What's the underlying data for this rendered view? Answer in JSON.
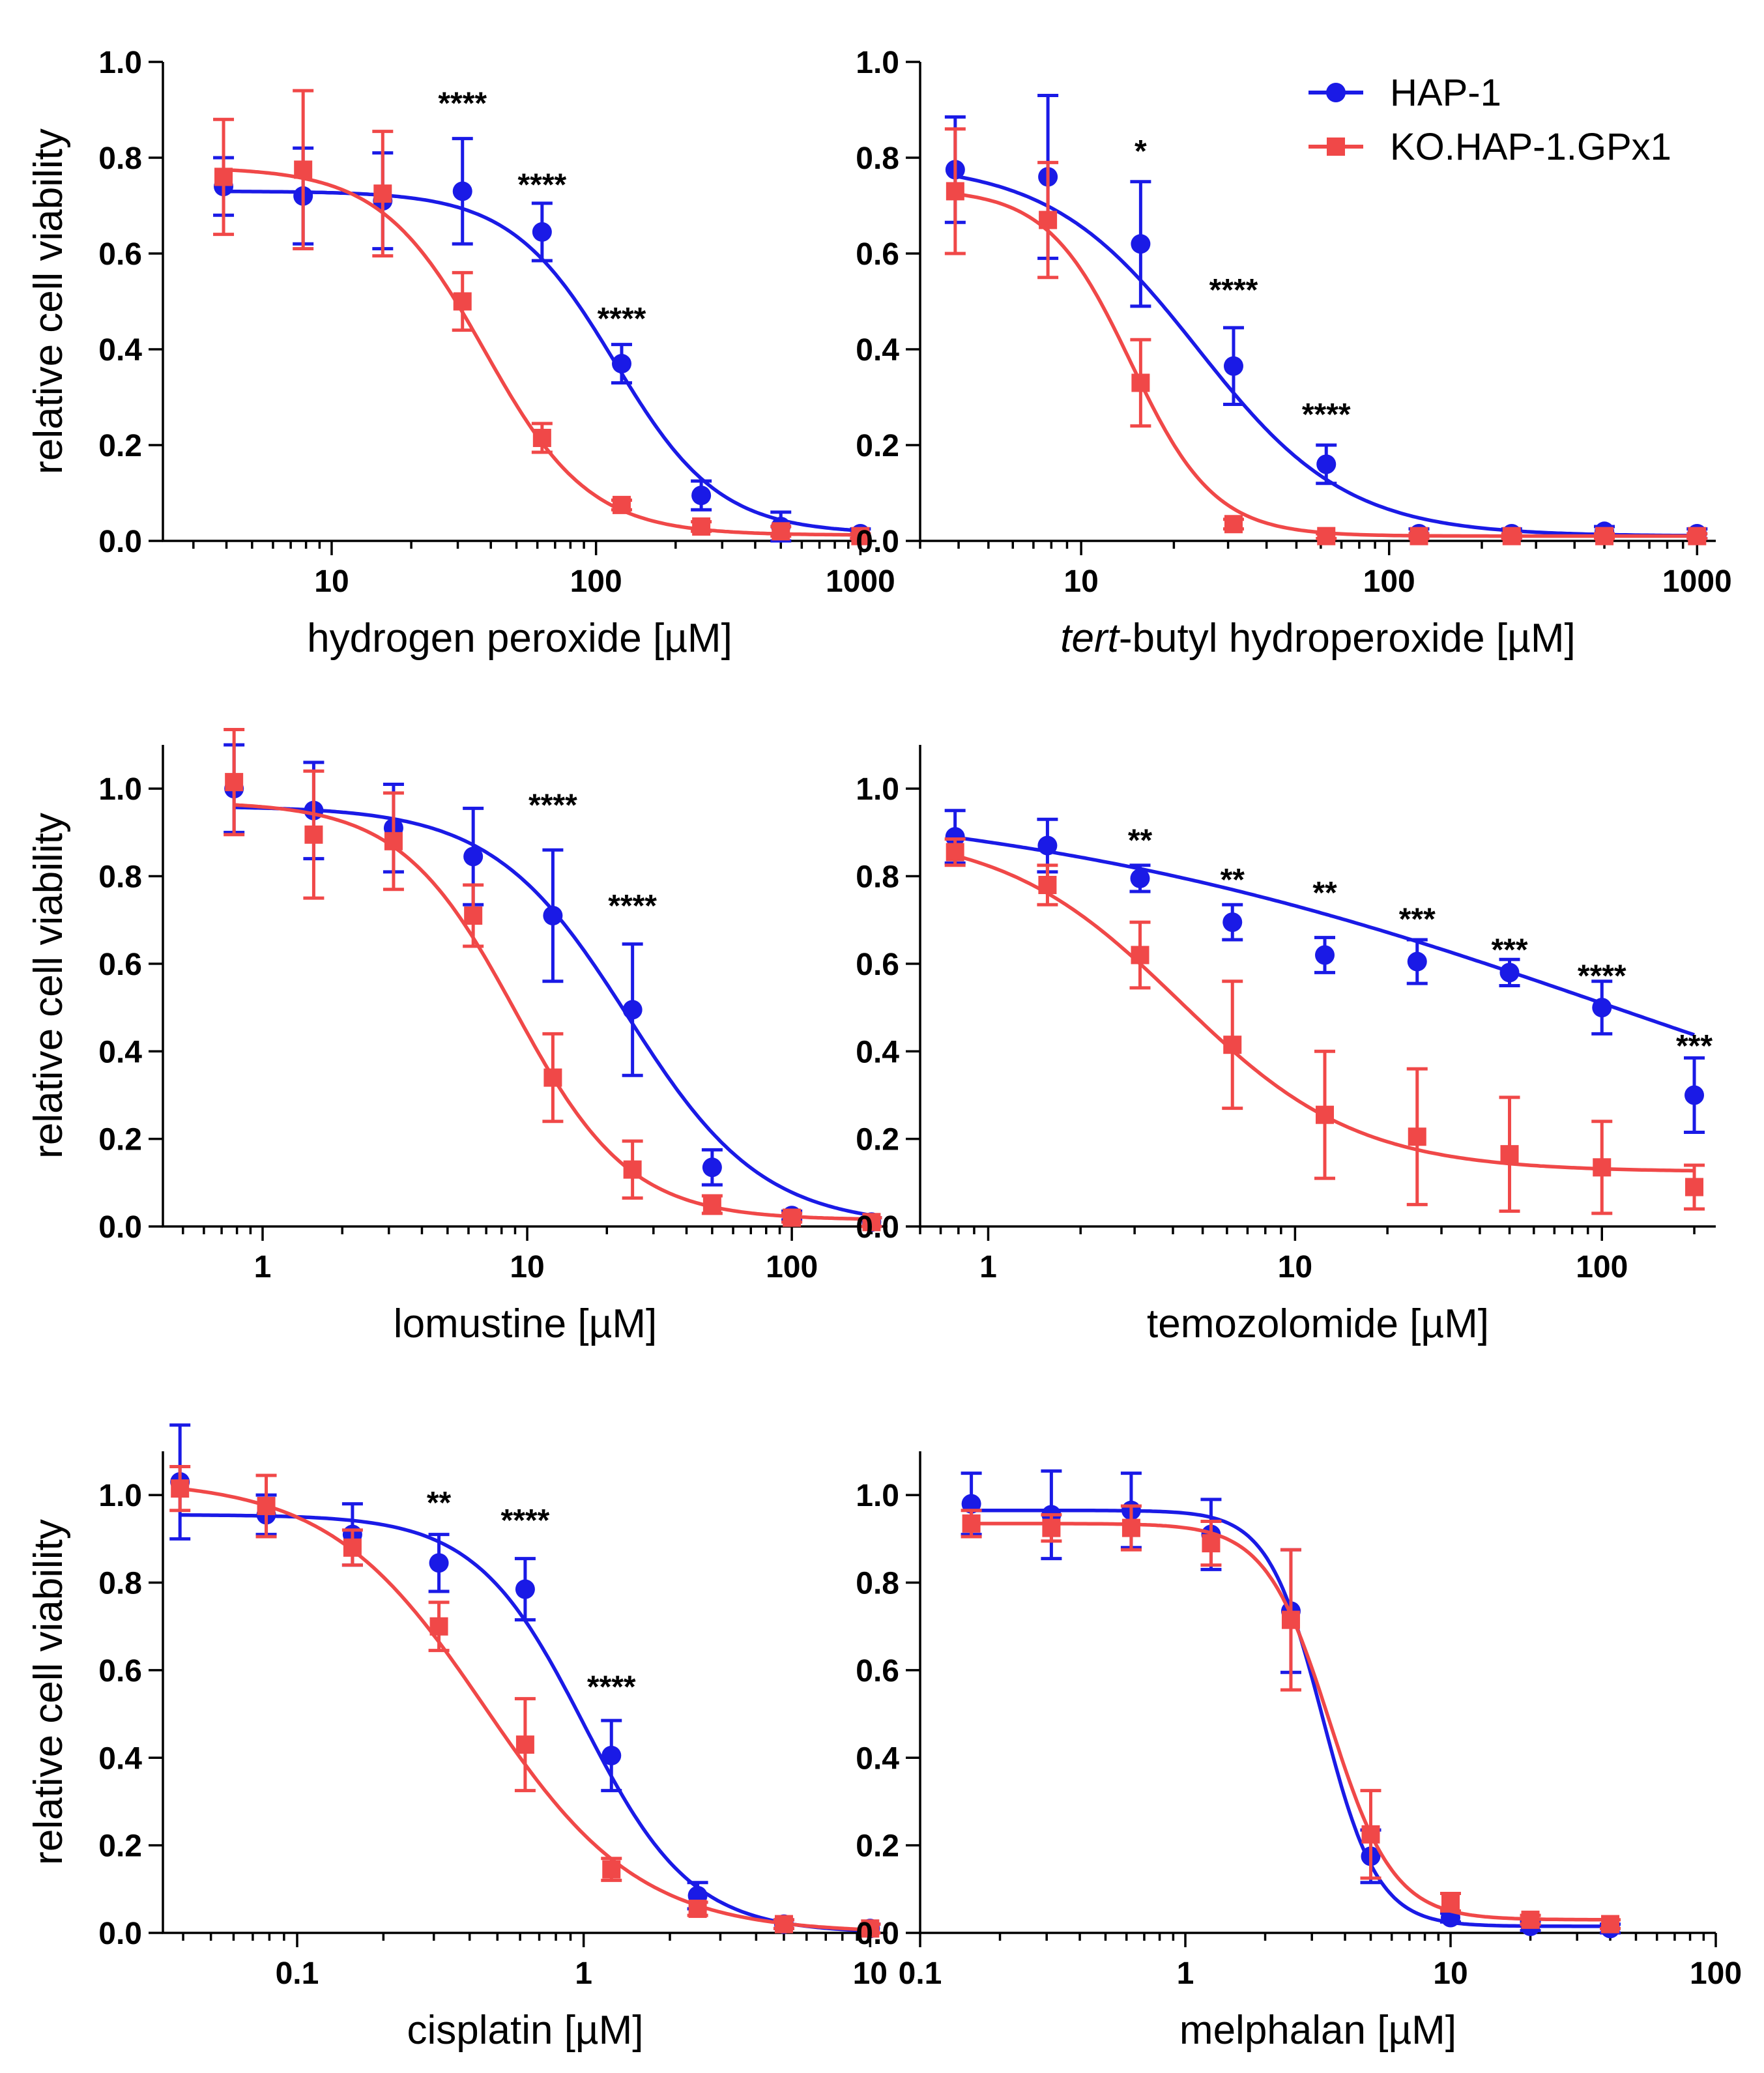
{
  "legend": {
    "entries": [
      {
        "name": "HAP-1",
        "color": "#1a1ae6",
        "marker": "circle"
      },
      {
        "name": "KO.HAP-1.GPx1",
        "color": "#f04848",
        "marker": "square"
      }
    ]
  },
  "colors": {
    "hap1": "#1a1ae6",
    "ko": "#f04848"
  },
  "chart_data": [
    {
      "type": "scatter",
      "title": "",
      "ylabel": "relative cell viability",
      "xlabel": "hydrogen peroxide [µM]",
      "xlabel_parts": [
        {
          "text": "hydrogen peroxide [µM]",
          "italic": false
        }
      ],
      "xscale": "log",
      "xlim": [
        2.3,
        1150
      ],
      "ylim": [
        0,
        1.0
      ],
      "yticks": [
        "0.0",
        "0.2",
        "0.4",
        "0.6",
        "0.8",
        "1.0"
      ],
      "ytick_values": [
        0,
        0.2,
        0.4,
        0.6,
        0.8,
        1.0
      ],
      "xticks": [
        {
          "value": 10,
          "label": "10"
        },
        {
          "value": 100,
          "label": "100"
        },
        {
          "value": 1000,
          "label": "1000"
        }
      ],
      "series": [
        {
          "name": "HAP-1",
          "x": [
            3.9,
            7.8,
            15.6,
            31.25,
            62.5,
            125,
            250,
            500,
            1000
          ],
          "y": [
            0.74,
            0.72,
            0.71,
            0.73,
            0.645,
            0.37,
            0.095,
            0.03,
            0.015
          ],
          "err": [
            0.06,
            0.1,
            0.1,
            0.11,
            0.06,
            0.04,
            0.03,
            0.03,
            0.01
          ],
          "fit": {
            "top": 0.73,
            "bottom": 0.015,
            "ec50": 118,
            "hill": 2.2
          }
        },
        {
          "name": "KO.HAP-1.GPx1",
          "x": [
            3.9,
            7.8,
            15.6,
            31.25,
            62.5,
            125,
            250,
            500,
            1000
          ],
          "y": [
            0.76,
            0.775,
            0.725,
            0.5,
            0.215,
            0.075,
            0.03,
            0.02,
            0.01
          ],
          "err": [
            0.12,
            0.165,
            0.13,
            0.06,
            0.03,
            0.01,
            0.01,
            0.01,
            0.005
          ],
          "fit": {
            "top": 0.78,
            "bottom": 0.012,
            "ec50": 38,
            "hill": 2.2
          }
        }
      ],
      "annotations": [
        {
          "text": "****",
          "x": 31.25,
          "y": 0.93
        },
        {
          "text": "****",
          "x": 62.5,
          "y": 0.76
        },
        {
          "text": "****",
          "x": 125,
          "y": 0.48
        }
      ]
    },
    {
      "type": "scatter",
      "title": "",
      "ylabel": "",
      "xlabel": "tert-butyl hydroperoxide [µM]",
      "xlabel_parts": [
        {
          "text": "tert",
          "italic": true
        },
        {
          "text": "-butyl hydroperoxide [µM]",
          "italic": false
        }
      ],
      "xscale": "log",
      "xlim": [
        3.0,
        1150
      ],
      "ylim": [
        0,
        1.0
      ],
      "yticks": [
        "0.0",
        "0.2",
        "0.4",
        "0.6",
        "0.8",
        "1.0"
      ],
      "ytick_values": [
        0,
        0.2,
        0.4,
        0.6,
        0.8,
        1.0
      ],
      "xticks": [
        {
          "value": 10,
          "label": "10"
        },
        {
          "value": 100,
          "label": "100"
        },
        {
          "value": 1000,
          "label": "1000"
        }
      ],
      "series": [
        {
          "name": "HAP-1",
          "x": [
            3.9,
            7.8,
            15.6,
            31.25,
            62.5,
            125,
            250,
            500,
            1000
          ],
          "y": [
            0.775,
            0.76,
            0.62,
            0.365,
            0.16,
            0.015,
            0.015,
            0.02,
            0.015
          ],
          "err": [
            0.11,
            0.17,
            0.13,
            0.08,
            0.04,
            0.01,
            0.01,
            0.01,
            0.01
          ],
          "fit": {
            "top": 0.79,
            "bottom": 0.01,
            "ec50": 24,
            "hill": 1.8
          }
        },
        {
          "name": "KO.HAP-1.GPx1",
          "x": [
            3.9,
            7.8,
            15.6,
            31.25,
            62.5,
            125,
            250,
            500,
            1000
          ],
          "y": [
            0.73,
            0.67,
            0.33,
            0.035,
            0.01,
            0.01,
            0.01,
            0.01,
            0.01
          ],
          "err": [
            0.13,
            0.12,
            0.09,
            0.01,
            0.005,
            0.005,
            0.005,
            0.005,
            0.005
          ],
          "fit": {
            "top": 0.735,
            "bottom": 0.01,
            "ec50": 14.5,
            "hill": 3.2
          }
        }
      ],
      "annotations": [
        {
          "text": "*",
          "x": 15.6,
          "y": 0.83
        },
        {
          "text": "****",
          "x": 31.25,
          "y": 0.54
        },
        {
          "text": "****",
          "x": 62.5,
          "y": 0.28
        }
      ]
    },
    {
      "type": "scatter",
      "title": "",
      "ylabel": "relative cell viability",
      "xlabel": "lomustine [µM]",
      "xlabel_parts": [
        {
          "text": "lomustine [µM]",
          "italic": false
        }
      ],
      "xscale": "log",
      "xlim": [
        0.42,
        230
      ],
      "ylim": [
        0,
        1.1
      ],
      "yticks": [
        "0.0",
        "0.2",
        "0.4",
        "0.6",
        "0.8",
        "1.0"
      ],
      "ytick_values": [
        0,
        0.2,
        0.4,
        0.6,
        0.8,
        1.0
      ],
      "xticks": [
        {
          "value": 1,
          "label": "1"
        },
        {
          "value": 10,
          "label": "10"
        },
        {
          "value": 100,
          "label": "100"
        }
      ],
      "series": [
        {
          "name": "HAP-1",
          "x": [
            0.78,
            1.56,
            3.125,
            6.25,
            12.5,
            25,
            50,
            100,
            200
          ],
          "y": [
            1.0,
            0.95,
            0.91,
            0.845,
            0.71,
            0.495,
            0.135,
            0.025,
            0.01
          ],
          "err": [
            0.1,
            0.11,
            0.1,
            0.11,
            0.15,
            0.15,
            0.04,
            0.01,
            0.01
          ],
          "fit": {
            "top": 0.96,
            "bottom": 0.0,
            "ec50": 24,
            "hill": 1.7
          }
        },
        {
          "name": "KO.HAP-1.GPx1",
          "x": [
            0.78,
            1.56,
            3.125,
            6.25,
            12.5,
            25,
            50,
            100,
            200
          ],
          "y": [
            1.015,
            0.895,
            0.88,
            0.71,
            0.34,
            0.13,
            0.05,
            0.02,
            0.01
          ],
          "err": [
            0.12,
            0.145,
            0.11,
            0.07,
            0.1,
            0.065,
            0.02,
            0.01,
            0.01
          ],
          "fit": {
            "top": 0.97,
            "bottom": 0.015,
            "ec50": 9.0,
            "hill": 2.0
          }
        }
      ],
      "annotations": [
        {
          "text": "****",
          "x": 12.5,
          "y": 0.98
        },
        {
          "text": "****",
          "x": 25,
          "y": 0.75
        }
      ]
    },
    {
      "type": "scatter",
      "title": "",
      "ylabel": "",
      "xlabel": "temozolomide [µM]",
      "xlabel_parts": [
        {
          "text": "temozolomide [µM]",
          "italic": false
        }
      ],
      "xscale": "log",
      "xlim": [
        0.6,
        235
      ],
      "ylim": [
        0,
        1.1
      ],
      "yticks": [
        "0.0",
        "0.2",
        "0.4",
        "0.6",
        "0.8",
        "1.0"
      ],
      "ytick_values": [
        0,
        0.2,
        0.4,
        0.6,
        0.8,
        1.0
      ],
      "xticks": [
        {
          "value": 1,
          "label": "1"
        },
        {
          "value": 10,
          "label": "10"
        },
        {
          "value": 100,
          "label": "100"
        }
      ],
      "series": [
        {
          "name": "HAP-1",
          "x": [
            0.78,
            1.56,
            3.125,
            6.25,
            12.5,
            25,
            50,
            100,
            200
          ],
          "y": [
            0.89,
            0.87,
            0.795,
            0.695,
            0.62,
            0.605,
            0.58,
            0.5,
            0.3
          ],
          "err": [
            0.06,
            0.06,
            0.03,
            0.04,
            0.04,
            0.05,
            0.03,
            0.06,
            0.085
          ],
          "fit": {
            "top": 1.0,
            "bottom": 0.0,
            "ec50": 110,
            "hill": 0.42
          }
        },
        {
          "name": "KO.HAP-1.GPx1",
          "x": [
            0.78,
            1.56,
            3.125,
            6.25,
            12.5,
            25,
            50,
            100,
            200
          ],
          "y": [
            0.855,
            0.78,
            0.62,
            0.415,
            0.255,
            0.205,
            0.165,
            0.135,
            0.09
          ],
          "err": [
            0.03,
            0.045,
            0.075,
            0.145,
            0.145,
            0.155,
            0.13,
            0.105,
            0.05
          ],
          "fit": {
            "top": 0.905,
            "bottom": 0.125,
            "ec50": 4.2,
            "hill": 1.5
          }
        }
      ],
      "annotations": [
        {
          "text": "**",
          "x": 3.125,
          "y": 0.9
        },
        {
          "text": "**",
          "x": 6.25,
          "y": 0.81
        },
        {
          "text": "**",
          "x": 12.5,
          "y": 0.78
        },
        {
          "text": "***",
          "x": 25,
          "y": 0.72
        },
        {
          "text": "***",
          "x": 50,
          "y": 0.65
        },
        {
          "text": "****",
          "x": 100,
          "y": 0.59
        },
        {
          "text": "***",
          "x": 200,
          "y": 0.43
        }
      ]
    },
    {
      "type": "scatter",
      "title": "",
      "ylabel": "relative cell viability",
      "xlabel": "cisplatin [µM]",
      "xlabel_parts": [
        {
          "text": "cisplatin [µM]",
          "italic": false
        }
      ],
      "xscale": "log",
      "xlim": [
        0.034,
        11.5
      ],
      "ylim": [
        0,
        1.1
      ],
      "yticks": [
        "0.0",
        "0.2",
        "0.4",
        "0.6",
        "0.8",
        "1.0"
      ],
      "ytick_values": [
        0,
        0.2,
        0.4,
        0.6,
        0.8,
        1.0
      ],
      "xticks": [
        {
          "value": 0.1,
          "label": "0.1"
        },
        {
          "value": 1,
          "label": "1"
        },
        {
          "value": 10,
          "label": "10"
        }
      ],
      "series": [
        {
          "name": "HAP-1",
          "x": [
            0.039,
            0.078,
            0.156,
            0.3125,
            0.625,
            1.25,
            2.5,
            5,
            10
          ],
          "y": [
            1.03,
            0.955,
            0.91,
            0.845,
            0.785,
            0.405,
            0.085,
            0.02,
            0.01
          ],
          "err": [
            0.13,
            0.045,
            0.07,
            0.065,
            0.07,
            0.08,
            0.03,
            0.01,
            0.01
          ],
          "fit": {
            "top": 0.955,
            "bottom": 0.0,
            "ec50": 1.0,
            "hill": 2.3
          }
        },
        {
          "name": "KO.HAP-1.GPx1",
          "x": [
            0.039,
            0.078,
            0.156,
            0.3125,
            0.625,
            1.25,
            2.5,
            5,
            10
          ],
          "y": [
            1.015,
            0.975,
            0.88,
            0.7,
            0.43,
            0.145,
            0.055,
            0.02,
            0.01
          ],
          "err": [
            0.05,
            0.07,
            0.04,
            0.055,
            0.105,
            0.025,
            0.015,
            0.01,
            0.01
          ],
          "fit": {
            "top": 1.035,
            "bottom": 0.0,
            "ec50": 0.45,
            "hill": 1.6
          }
        }
      ],
      "annotations": [
        {
          "text": "**",
          "x": 0.3125,
          "y": 1.0
        },
        {
          "text": "****",
          "x": 0.625,
          "y": 0.96
        },
        {
          "text": "****",
          "x": 1.25,
          "y": 0.58
        }
      ]
    },
    {
      "type": "scatter",
      "title": "",
      "ylabel": "",
      "xlabel": "melphalan [µM]",
      "xlabel_parts": [
        {
          "text": "melphalan [µM]",
          "italic": false
        }
      ],
      "xscale": "log",
      "xlim": [
        0.1,
        100
      ],
      "ylim": [
        0,
        1.1
      ],
      "yticks": [
        "0.0",
        "0.2",
        "0.4",
        "0.6",
        "0.8",
        "1.0"
      ],
      "ytick_values": [
        0,
        0.2,
        0.4,
        0.6,
        0.8,
        1.0
      ],
      "xticks": [
        {
          "value": 0.1,
          "label": "0.1"
        },
        {
          "value": 1,
          "label": "1"
        },
        {
          "value": 10,
          "label": "10"
        },
        {
          "value": 100,
          "label": "100"
        }
      ],
      "series": [
        {
          "name": "HAP-1",
          "x": [
            0.156,
            0.3125,
            0.625,
            1.25,
            2.5,
            5,
            10,
            20,
            40
          ],
          "y": [
            0.98,
            0.955,
            0.965,
            0.91,
            0.735,
            0.175,
            0.035,
            0.015,
            0.01
          ],
          "err": [
            0.07,
            0.1,
            0.085,
            0.08,
            0.14,
            0.06,
            0.01,
            0.01,
            0.01
          ],
          "fit": {
            "top": 0.965,
            "bottom": 0.015,
            "ec50": 3.3,
            "hill": 4.2
          }
        },
        {
          "name": "KO.HAP-1.GPx1",
          "x": [
            0.156,
            0.3125,
            0.625,
            1.25,
            2.5,
            5,
            10,
            20,
            40
          ],
          "y": [
            0.935,
            0.925,
            0.925,
            0.89,
            0.715,
            0.225,
            0.07,
            0.03,
            0.02
          ],
          "err": [
            0.03,
            0.03,
            0.05,
            0.05,
            0.16,
            0.1,
            0.02,
            0.01,
            0.01
          ],
          "fit": {
            "top": 0.935,
            "bottom": 0.03,
            "ec50": 3.5,
            "hill": 3.6
          }
        }
      ],
      "annotations": []
    }
  ]
}
